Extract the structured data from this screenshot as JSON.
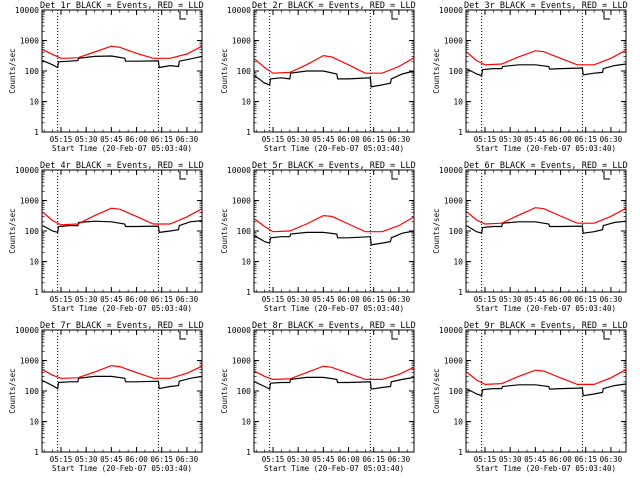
{
  "colors": {
    "events": "#000000",
    "lld": "#ff0000",
    "marker": "#000000"
  },
  "chart_data": [
    {
      "type": "line",
      "title": "Det 1r BLACK = Events, RED = LLD",
      "xlabel": "Start Time (20-Feb-07 05:03:40)",
      "ylabel": "Counts/sec",
      "y_scale": "log",
      "ylim": [
        1,
        10000
      ],
      "yticks": [
        "1",
        "10",
        "100",
        "1000",
        "10000"
      ],
      "xticks": [
        "05:15",
        "05:30",
        "05:45",
        "06:00",
        "06:15",
        "06:30"
      ],
      "xlim": [
        "05:03:40",
        "06:39:00"
      ],
      "vlines": [
        "05:13:00",
        "06:13:00"
      ],
      "series": [
        {
          "name": "Events",
          "x": [
            "05:04",
            "05:10",
            "05:13",
            "05:13:30",
            "05:20",
            "05:25",
            "05:25:30",
            "05:35",
            "05:45",
            "05:53",
            "05:53:30",
            "06:00",
            "06:13",
            "06:13:30",
            "06:20",
            "06:25",
            "06:25:30",
            "06:32",
            "06:39"
          ],
          "y": [
            220,
            160,
            130,
            200,
            210,
            220,
            260,
            300,
            310,
            260,
            210,
            210,
            215,
            130,
            150,
            140,
            210,
            250,
            300
          ]
        },
        {
          "name": "LLD",
          "x": [
            "05:04",
            "05:10",
            "05:15",
            "05:25",
            "05:35",
            "05:45",
            "05:50",
            "06:00",
            "06:10",
            "06:20",
            "06:30",
            "06:39"
          ],
          "y": [
            500,
            350,
            260,
            270,
            420,
            650,
            600,
            380,
            260,
            260,
            360,
            650
          ]
        }
      ]
    },
    {
      "type": "line",
      "title": "Det 2r BLACK = Events, RED = LLD",
      "xlabel": "Start Time (20-Feb-07 05:03:40)",
      "ylabel": "Counts/sec",
      "y_scale": "log",
      "ylim": [
        1,
        10000
      ],
      "yticks": [
        "1",
        "10",
        "100",
        "1000",
        "10000"
      ],
      "xticks": [
        "05:15",
        "05:30",
        "05:45",
        "06:00",
        "06:15",
        "06:30"
      ],
      "xlim": [
        "05:03:40",
        "06:39:00"
      ],
      "vlines": [
        "05:13:00",
        "06:13:00"
      ],
      "series": [
        {
          "name": "Events",
          "x": [
            "05:04",
            "05:10",
            "05:13",
            "05:13:30",
            "05:20",
            "05:25",
            "05:25:30",
            "05:35",
            "05:45",
            "05:53",
            "05:53:30",
            "06:00",
            "06:13",
            "06:13:30",
            "06:20",
            "06:25",
            "06:25:30",
            "06:32",
            "06:39"
          ],
          "y": [
            70,
            40,
            35,
            55,
            60,
            55,
            85,
            100,
            100,
            80,
            55,
            55,
            60,
            30,
            35,
            40,
            55,
            80,
            100
          ]
        },
        {
          "name": "LLD",
          "x": [
            "05:04",
            "05:10",
            "05:15",
            "05:25",
            "05:35",
            "05:45",
            "05:50",
            "06:00",
            "06:10",
            "06:20",
            "06:30",
            "06:39"
          ],
          "y": [
            250,
            130,
            85,
            90,
            160,
            320,
            290,
            160,
            85,
            85,
            140,
            270
          ]
        }
      ]
    },
    {
      "type": "line",
      "title": "Det 3r BLACK = Events, RED = LLD",
      "xlabel": "Start Time (20-Feb-07 05:03:40)",
      "ylabel": "Counts/sec",
      "y_scale": "log",
      "ylim": [
        1,
        10000
      ],
      "yticks": [
        "1",
        "10",
        "100",
        "1000",
        "10000"
      ],
      "xticks": [
        "05:15",
        "05:30",
        "05:45",
        "06:00",
        "06:15",
        "06:30"
      ],
      "xlim": [
        "05:03:40",
        "06:39:00"
      ],
      "vlines": [
        "05:13:00",
        "06:13:00"
      ],
      "series": [
        {
          "name": "Events",
          "x": [
            "05:04",
            "05:10",
            "05:13",
            "05:13:30",
            "05:20",
            "05:25",
            "05:25:30",
            "05:35",
            "05:45",
            "05:53",
            "05:53:30",
            "06:00",
            "06:13",
            "06:13:30",
            "06:20",
            "06:25",
            "06:25:30",
            "06:32",
            "06:39"
          ],
          "y": [
            120,
            80,
            70,
            110,
            120,
            120,
            140,
            160,
            160,
            140,
            115,
            120,
            125,
            75,
            85,
            90,
            120,
            150,
            170
          ]
        },
        {
          "name": "LLD",
          "x": [
            "05:04",
            "05:10",
            "05:15",
            "05:25",
            "05:35",
            "05:45",
            "05:50",
            "06:00",
            "06:10",
            "06:20",
            "06:30",
            "06:39"
          ],
          "y": [
            420,
            220,
            160,
            170,
            290,
            460,
            430,
            260,
            160,
            160,
            260,
            480
          ]
        }
      ]
    },
    {
      "type": "line",
      "title": "Det 4r BLACK = Events, RED = LLD",
      "xlabel": "Start Time (20-Feb-07 05:03:40)",
      "ylabel": "Counts/sec",
      "y_scale": "log",
      "ylim": [
        1,
        10000
      ],
      "yticks": [
        "1",
        "10",
        "100",
        "1000",
        "10000"
      ],
      "xticks": [
        "05:15",
        "05:30",
        "05:45",
        "06:00",
        "06:15",
        "06:30"
      ],
      "xlim": [
        "05:03:40",
        "06:39:00"
      ],
      "vlines": [
        "05:13:00",
        "06:13:00"
      ],
      "series": [
        {
          "name": "Events",
          "x": [
            "05:04",
            "05:10",
            "05:13",
            "05:13:30",
            "05:20",
            "05:25",
            "05:25:30",
            "05:35",
            "05:45",
            "05:53",
            "05:53:30",
            "06:00",
            "06:13",
            "06:13:30",
            "06:20",
            "06:25",
            "06:25:30",
            "06:32",
            "06:39"
          ],
          "y": [
            150,
            100,
            90,
            140,
            150,
            150,
            190,
            210,
            200,
            170,
            140,
            140,
            145,
            90,
            100,
            110,
            150,
            200,
            220
          ]
        },
        {
          "name": "LLD",
          "x": [
            "05:04",
            "05:10",
            "05:15",
            "05:25",
            "05:35",
            "05:45",
            "05:50",
            "06:00",
            "06:10",
            "06:20",
            "06:30",
            "06:39"
          ],
          "y": [
            420,
            220,
            160,
            170,
            320,
            560,
            520,
            300,
            170,
            170,
            290,
            540
          ]
        }
      ]
    },
    {
      "type": "line",
      "title": "Det 5r BLACK = Events, RED = LLD",
      "xlabel": "Start Time (20-Feb-07 05:03:40)",
      "ylabel": "Counts/sec",
      "y_scale": "log",
      "ylim": [
        1,
        10000
      ],
      "yticks": [
        "1",
        "10",
        "100",
        "1000",
        "10000"
      ],
      "xticks": [
        "05:15",
        "05:30",
        "05:45",
        "06:00",
        "06:15",
        "06:30"
      ],
      "xlim": [
        "05:03:40",
        "06:39:00"
      ],
      "vlines": [
        "05:13:00",
        "06:13:00"
      ],
      "series": [
        {
          "name": "Events",
          "x": [
            "05:04",
            "05:10",
            "05:13",
            "05:13:30",
            "05:20",
            "05:25",
            "05:25:30",
            "05:35",
            "05:45",
            "05:53",
            "05:53:30",
            "06:00",
            "06:13",
            "06:13:30",
            "06:20",
            "06:25",
            "06:25:30",
            "06:32",
            "06:39"
          ],
          "y": [
            70,
            45,
            40,
            60,
            65,
            65,
            80,
            90,
            90,
            80,
            60,
            60,
            65,
            35,
            40,
            45,
            60,
            85,
            100
          ]
        },
        {
          "name": "LLD",
          "x": [
            "05:04",
            "05:10",
            "05:15",
            "05:25",
            "05:35",
            "05:45",
            "05:50",
            "06:00",
            "06:10",
            "06:20",
            "06:30",
            "06:39"
          ],
          "y": [
            250,
            140,
            95,
            100,
            170,
            320,
            300,
            170,
            95,
            95,
            150,
            290
          ]
        }
      ]
    },
    {
      "type": "line",
      "title": "Det 6r BLACK = Events, RED = LLD",
      "xlabel": "Start Time (20-Feb-07 05:03:40)",
      "ylabel": "Counts/sec",
      "y_scale": "log",
      "ylim": [
        1,
        10000
      ],
      "yticks": [
        "1",
        "10",
        "100",
        "1000",
        "10000"
      ],
      "xticks": [
        "05:15",
        "05:30",
        "05:45",
        "06:00",
        "06:15",
        "06:30"
      ],
      "xlim": [
        "05:03:40",
        "06:39:00"
      ],
      "vlines": [
        "05:13:00",
        "06:13:00"
      ],
      "series": [
        {
          "name": "Events",
          "x": [
            "05:04",
            "05:10",
            "05:13",
            "05:13:30",
            "05:20",
            "05:25",
            "05:25:30",
            "05:35",
            "05:45",
            "05:53",
            "05:53:30",
            "06:00",
            "06:13",
            "06:13:30",
            "06:20",
            "06:25",
            "06:25:30",
            "06:32",
            "06:39"
          ],
          "y": [
            150,
            95,
            85,
            130,
            140,
            140,
            180,
            200,
            200,
            170,
            140,
            140,
            145,
            85,
            95,
            110,
            150,
            190,
            210
          ]
        },
        {
          "name": "LLD",
          "x": [
            "05:04",
            "05:10",
            "05:15",
            "05:25",
            "05:35",
            "05:45",
            "05:50",
            "06:00",
            "06:10",
            "06:20",
            "06:30",
            "06:39"
          ],
          "y": [
            430,
            230,
            170,
            180,
            330,
            580,
            540,
            310,
            180,
            180,
            300,
            560
          ]
        }
      ]
    },
    {
      "type": "line",
      "title": "Det 7r BLACK = Events, RED = LLD",
      "xlabel": "Start Time (20-Feb-07 05:03:40)",
      "ylabel": "Counts/sec",
      "y_scale": "log",
      "ylim": [
        1,
        10000
      ],
      "yticks": [
        "1",
        "10",
        "100",
        "1000",
        "10000"
      ],
      "xticks": [
        "05:15",
        "05:30",
        "05:45",
        "06:00",
        "06:15",
        "06:30"
      ],
      "xlim": [
        "05:03:40",
        "06:39:00"
      ],
      "vlines": [
        "05:13:00",
        "06:13:00"
      ],
      "series": [
        {
          "name": "Events",
          "x": [
            "05:04",
            "05:10",
            "05:13",
            "05:13:30",
            "05:20",
            "05:25",
            "05:25:30",
            "05:35",
            "05:45",
            "05:53",
            "05:53:30",
            "06:00",
            "06:13",
            "06:13:30",
            "06:20",
            "06:25",
            "06:25:30",
            "06:32",
            "06:39"
          ],
          "y": [
            220,
            150,
            120,
            190,
            200,
            200,
            260,
            300,
            300,
            260,
            200,
            200,
            210,
            120,
            140,
            150,
            210,
            260,
            300
          ]
        },
        {
          "name": "LLD",
          "x": [
            "05:04",
            "05:10",
            "05:15",
            "05:25",
            "05:35",
            "05:45",
            "05:50",
            "06:00",
            "06:10",
            "06:20",
            "06:30",
            "06:39"
          ],
          "y": [
            500,
            330,
            260,
            270,
            420,
            680,
            630,
            400,
            260,
            260,
            380,
            650
          ]
        }
      ]
    },
    {
      "type": "line",
      "title": "Det 8r BLACK = Events, RED = LLD",
      "xlabel": "Start Time (20-Feb-07 05:03:40)",
      "ylabel": "Counts/sec",
      "y_scale": "log",
      "ylim": [
        1,
        10000
      ],
      "yticks": [
        "1",
        "10",
        "100",
        "1000",
        "10000"
      ],
      "xticks": [
        "05:15",
        "05:30",
        "05:45",
        "06:00",
        "06:15",
        "06:30"
      ],
      "xlim": [
        "05:03:40",
        "06:39:00"
      ],
      "vlines": [
        "05:13:00",
        "06:13:00"
      ],
      "series": [
        {
          "name": "Events",
          "x": [
            "05:04",
            "05:10",
            "05:13",
            "05:13:30",
            "05:20",
            "05:25",
            "05:25:30",
            "05:35",
            "05:45",
            "05:53",
            "05:53:30",
            "06:00",
            "06:13",
            "06:13:30",
            "06:20",
            "06:25",
            "06:25:30",
            "06:32",
            "06:39"
          ],
          "y": [
            200,
            140,
            115,
            180,
            190,
            190,
            240,
            280,
            280,
            240,
            190,
            190,
            200,
            115,
            130,
            140,
            200,
            240,
            280
          ]
        },
        {
          "name": "LLD",
          "x": [
            "05:04",
            "05:10",
            "05:15",
            "05:25",
            "05:35",
            "05:45",
            "05:50",
            "06:00",
            "06:10",
            "06:20",
            "06:30",
            "06:39"
          ],
          "y": [
            450,
            300,
            240,
            250,
            400,
            650,
            600,
            380,
            240,
            240,
            350,
            600
          ]
        }
      ]
    },
    {
      "type": "line",
      "title": "Det 9r BLACK = Events, RED = LLD",
      "xlabel": "Start Time (20-Feb-07 05:03:40)",
      "ylabel": "Counts/sec",
      "y_scale": "log",
      "ylim": [
        1,
        10000
      ],
      "yticks": [
        "1",
        "10",
        "100",
        "1000",
        "10000"
      ],
      "xticks": [
        "05:15",
        "05:30",
        "05:45",
        "06:00",
        "06:15",
        "06:30"
      ],
      "xlim": [
        "05:03:40",
        "06:39:00"
      ],
      "vlines": [
        "05:13:00",
        "06:13:00"
      ],
      "series": [
        {
          "name": "Events",
          "x": [
            "05:04",
            "05:10",
            "05:13",
            "05:13:30",
            "05:20",
            "05:25",
            "05:25:30",
            "05:35",
            "05:45",
            "05:53",
            "05:53:30",
            "06:00",
            "06:13",
            "06:13:30",
            "06:20",
            "06:25",
            "06:25:30",
            "06:32",
            "06:39"
          ],
          "y": [
            120,
            80,
            70,
            110,
            120,
            120,
            140,
            160,
            160,
            140,
            115,
            120,
            125,
            70,
            80,
            90,
            120,
            150,
            170
          ]
        },
        {
          "name": "LLD",
          "x": [
            "05:04",
            "05:10",
            "05:15",
            "05:25",
            "05:35",
            "05:45",
            "05:50",
            "06:00",
            "06:10",
            "06:20",
            "06:30",
            "06:39"
          ],
          "y": [
            420,
            230,
            165,
            175,
            300,
            480,
            450,
            270,
            165,
            165,
            270,
            500
          ]
        }
      ]
    }
  ]
}
